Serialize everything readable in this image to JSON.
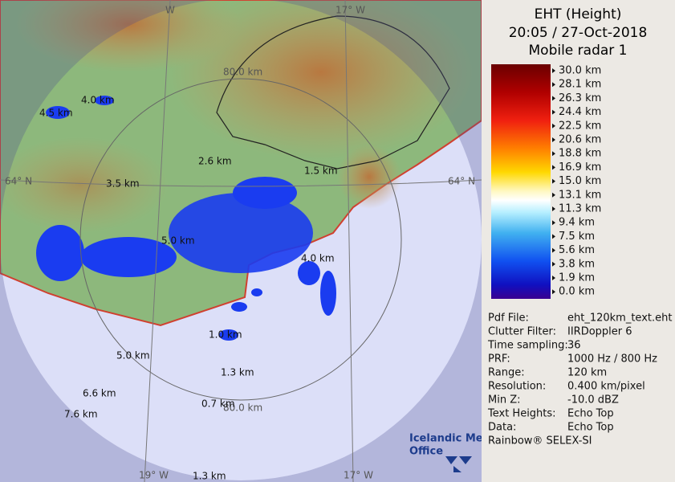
{
  "header": {
    "title": "EHT (Height)",
    "datetime": "20:05 / 27-Oct-2018",
    "source": "Mobile radar 1"
  },
  "legend": {
    "labels": [
      "30.0 km",
      "28.1 km",
      "26.3 km",
      "24.4 km",
      "22.5 km",
      "20.6 km",
      "18.8 km",
      "16.9 km",
      "15.0 km",
      "13.1 km",
      "11.3 km",
      "9.4 km",
      "7.5 km",
      "5.6 km",
      "3.8 km",
      "1.9 km",
      "0.0 km"
    ]
  },
  "info": {
    "rows": [
      [
        "Pdf File:",
        "eht_120km_text.eht"
      ],
      [
        "Clutter Filter:",
        "IIRDoppler 6"
      ],
      [
        "Time sampling:",
        "36"
      ],
      [
        "PRF:",
        "1000 Hz / 800 Hz"
      ],
      [
        "Range:",
        "120 km"
      ],
      [
        "Resolution:",
        "0.400 km/pixel"
      ],
      [
        "Min Z:",
        "-10.0 dBZ"
      ],
      [
        "Text Heights:",
        "Echo Top"
      ],
      [
        "Data:",
        "Echo Top"
      ]
    ]
  },
  "footer": "Rainbow® SELEX-SI",
  "logo": {
    "line1": "Icelandic Met",
    "line2": "Office"
  },
  "map": {
    "grid_labels": [
      "W",
      "17° W",
      "80.0 km",
      "64° N",
      "64° N",
      "80.0 km",
      "19° W",
      "17° W"
    ],
    "echo_labels": [
      "4.0 km",
      "4.5 km",
      "2.6 km",
      "1.5 km",
      "3.5 km",
      "5.0 km",
      "4.0 km",
      "1.0 km",
      "5.0 km",
      "1.3 km",
      "6.6 km",
      "0.7 km",
      "7.6 km",
      "1.3 km"
    ]
  }
}
